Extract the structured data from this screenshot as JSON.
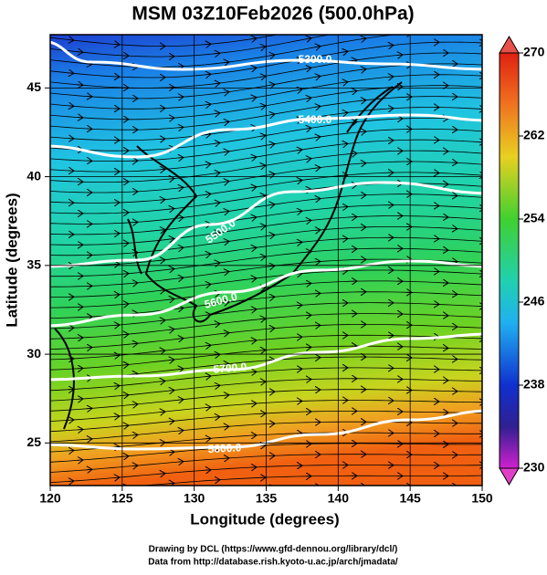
{
  "title": "MSM 03Z10Feb2026 (500.0hPa)",
  "x_label": "Longitude (degrees)",
  "y_label": "Latitude  (degrees)",
  "xlim": [
    120,
    150
  ],
  "xticks": [
    120,
    125,
    130,
    135,
    140,
    145,
    150
  ],
  "ylim": [
    22.6,
    48.0
  ],
  "yticks": [
    25,
    30,
    35,
    40,
    45
  ],
  "colorbar": {
    "lim": [
      230,
      270
    ],
    "ticks": [
      230,
      238,
      246,
      254,
      262,
      270
    ]
  },
  "contour_labels": [
    "5300.0",
    "5400.0",
    "5500.0",
    "5600.0",
    "5700.0",
    "5800.0"
  ],
  "credits": [
    "Drawing by DCL (https://www.gfd-dennou.org/library/dcl/)",
    "Data from http://database.rish.kyoto-u.ac.jp/arch/jmadata/"
  ]
}
